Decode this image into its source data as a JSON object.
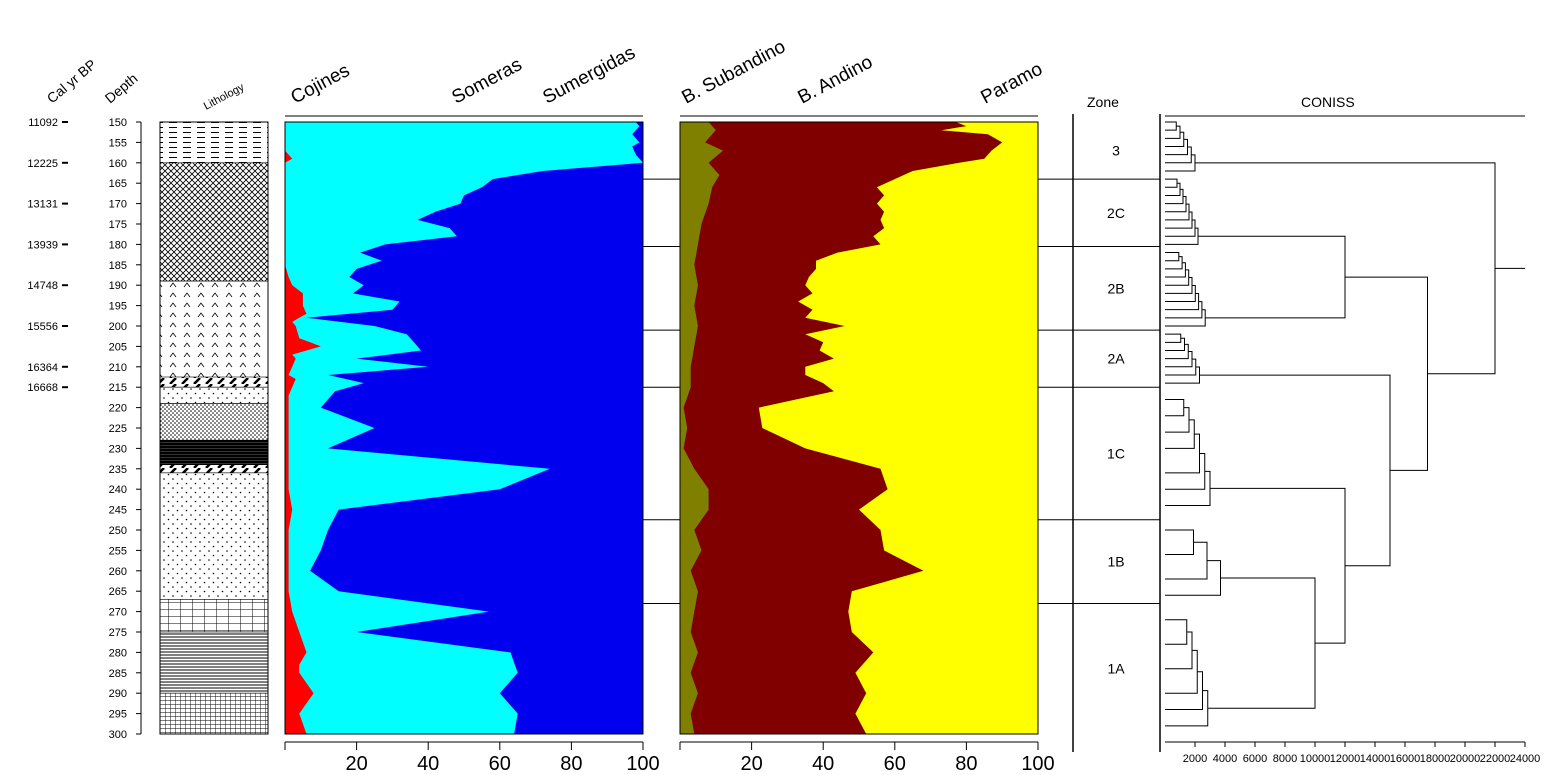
{
  "chart_data": {
    "type": "area",
    "depth_axis": {
      "label": "Depth",
      "ylim": [
        150,
        300
      ],
      "ticks": [
        150,
        155,
        160,
        165,
        170,
        175,
        180,
        185,
        190,
        195,
        200,
        205,
        210,
        215,
        220,
        225,
        230,
        235,
        240,
        245,
        250,
        255,
        260,
        265,
        270,
        275,
        280,
        285,
        290,
        295,
        300
      ]
    },
    "age_axis": {
      "label": "Cal yr BP",
      "ticks": [
        {
          "age": "11092",
          "depth": 150
        },
        {
          "age": "12225",
          "depth": 160
        },
        {
          "age": "13131",
          "depth": 170
        },
        {
          "age": "13939",
          "depth": 180
        },
        {
          "age": "14748",
          "depth": 190
        },
        {
          "age": "15556",
          "depth": 200
        },
        {
          "age": "16364",
          "depth": 210
        },
        {
          "age": "16668",
          "depth": 215
        }
      ]
    },
    "lithology": {
      "label": "Lithology",
      "units": [
        {
          "top": 150,
          "bottom": 160,
          "pattern": "dashes"
        },
        {
          "top": 160,
          "bottom": 189,
          "pattern": "crosshatch"
        },
        {
          "top": 189,
          "bottom": 214,
          "pattern": "carets"
        },
        {
          "top": 212.5,
          "bottom": 215,
          "pattern": "slashes"
        },
        {
          "top": 215,
          "bottom": 219,
          "pattern": "dots"
        },
        {
          "top": 219,
          "bottom": 228,
          "pattern": "dense-dots"
        },
        {
          "top": 228,
          "bottom": 234,
          "pattern": "heavy-stripes"
        },
        {
          "top": 234,
          "bottom": 236,
          "pattern": "slashes"
        },
        {
          "top": 236,
          "bottom": 267,
          "pattern": "dots"
        },
        {
          "top": 267,
          "bottom": 275,
          "pattern": "grid"
        },
        {
          "top": 275,
          "bottom": 290,
          "pattern": "hlines"
        },
        {
          "top": 290,
          "bottom": 300,
          "pattern": "fine-grid"
        }
      ]
    },
    "panel1": {
      "xlim": [
        0,
        100
      ],
      "ticks": [
        "20",
        "40",
        "60",
        "80",
        "100"
      ],
      "series": [
        {
          "name": "Cojines",
          "color": "#ff0000",
          "depth": [
            150,
            157,
            158,
            159,
            160,
            165,
            170,
            175,
            180,
            185,
            188,
            190,
            192,
            195,
            197,
            199,
            200,
            203,
            205,
            207,
            208,
            210,
            212,
            213,
            215,
            217,
            220,
            225,
            230,
            235,
            240,
            245,
            250,
            255,
            260,
            265,
            270,
            275,
            280,
            283,
            285,
            290,
            295,
            300
          ],
          "values": [
            0,
            0,
            1,
            2,
            0,
            0,
            0,
            0,
            0,
            0,
            1,
            2,
            5,
            5,
            6,
            2,
            3,
            4,
            10,
            2,
            3,
            2,
            1,
            3,
            2,
            1,
            1,
            1,
            1,
            1,
            1,
            2,
            1,
            1,
            1,
            1,
            2,
            4,
            6,
            4,
            4,
            8,
            4,
            6
          ]
        },
        {
          "name": "Someras",
          "color": "#00ffff",
          "depth": [
            150,
            151,
            153,
            155,
            156,
            158,
            160,
            162,
            164,
            166,
            168,
            170,
            172,
            174,
            176,
            178,
            180,
            182,
            184,
            186,
            188,
            190,
            192,
            194,
            196,
            198,
            200,
            202,
            204,
            206,
            208,
            210,
            212,
            214,
            216,
            220,
            225,
            230,
            235,
            240,
            245,
            250,
            255,
            260,
            265,
            270,
            275,
            280,
            285,
            290,
            295,
            300
          ],
          "values": [
            98,
            99,
            97,
            99,
            97,
            98,
            100,
            72,
            58,
            55,
            50,
            49,
            42,
            37,
            46,
            48,
            28,
            21,
            27,
            20,
            18,
            22,
            19,
            32,
            30,
            6,
            25,
            34,
            36,
            38,
            20,
            40,
            12,
            22,
            14,
            10,
            25,
            12,
            74,
            60,
            15,
            12,
            10,
            7,
            15,
            57,
            20,
            63,
            65,
            60,
            65,
            64
          ]
        }
      ]
    },
    "panel2": {
      "xlim": [
        0,
        100
      ],
      "ticks": [
        "20",
        "40",
        "60",
        "80",
        "100"
      ],
      "series": [
        {
          "name": "B. Subandino",
          "color": "#808000",
          "depth": [
            150,
            152,
            155,
            157,
            160,
            163,
            166,
            170,
            175,
            180,
            185,
            190,
            195,
            200,
            205,
            210,
            215,
            220,
            225,
            230,
            235,
            240,
            245,
            250,
            255,
            260,
            265,
            270,
            275,
            280,
            285,
            290,
            295,
            300
          ],
          "values": [
            8,
            10,
            7,
            12,
            8,
            11,
            9,
            8,
            6,
            5,
            4,
            5,
            4,
            5,
            4,
            3,
            3,
            1,
            2,
            1,
            4,
            8,
            8,
            4,
            6,
            3,
            5,
            4,
            3,
            5,
            3,
            5,
            3,
            4
          ]
        },
        {
          "name": "B. Andino",
          "color": "#800000",
          "depth": [
            150,
            151,
            152,
            153,
            155,
            157,
            159,
            160,
            162,
            164,
            166,
            168,
            170,
            172,
            174,
            176,
            178,
            180,
            182,
            184,
            186,
            188,
            190,
            192,
            194,
            196,
            198,
            200,
            202,
            204,
            206,
            208,
            210,
            212,
            214,
            216,
            220,
            225,
            230,
            235,
            240,
            245,
            250,
            255,
            260,
            265,
            270,
            275,
            280,
            285,
            290,
            295,
            300
          ],
          "values": [
            77,
            80,
            73,
            86,
            90,
            87,
            85,
            78,
            65,
            60,
            55,
            57,
            55,
            57,
            56,
            57,
            54,
            56,
            44,
            38,
            38,
            36,
            35,
            37,
            33,
            37,
            35,
            46,
            35,
            40,
            39,
            43,
            35,
            35,
            40,
            43,
            22,
            23,
            35,
            56,
            58,
            50,
            56,
            57,
            68,
            48,
            47,
            48,
            54,
            49,
            52,
            49,
            52
          ]
        }
      ]
    },
    "zone_column": {
      "label": "Zone",
      "zones": [
        {
          "name": "3",
          "top": 150,
          "bottom": 164
        },
        {
          "name": "2C",
          "top": 164,
          "bottom": 180.5
        },
        {
          "name": "2B",
          "top": 180.5,
          "bottom": 201
        },
        {
          "name": "2A",
          "top": 201,
          "bottom": 215
        },
        {
          "name": "1C",
          "top": 215,
          "bottom": 247.5
        },
        {
          "name": "1B",
          "top": 247.5,
          "bottom": 268
        },
        {
          "name": "1A",
          "top": 268,
          "bottom": 300
        }
      ]
    },
    "coniss": {
      "title": "CONISS",
      "tick_labels": [
        "2000",
        "4000",
        "6000",
        "8000",
        "10000",
        "12000",
        "14000",
        "16000",
        "18000",
        "20000",
        "22000",
        "24000"
      ]
    }
  }
}
